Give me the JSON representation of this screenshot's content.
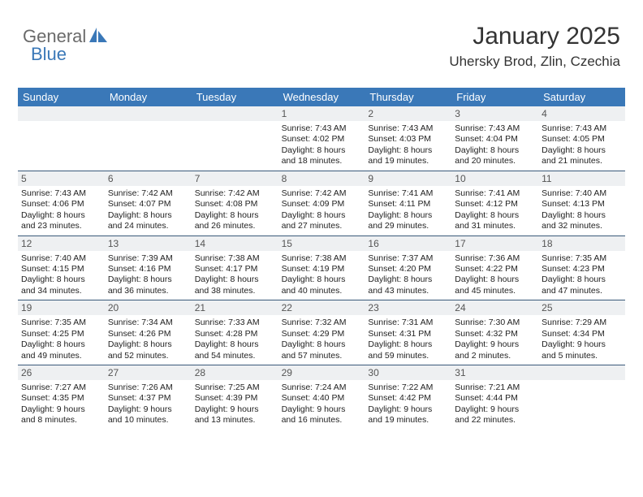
{
  "brand": {
    "name_left": "General",
    "name_right": "Blue"
  },
  "colors": {
    "header_bg": "#3a78b8",
    "header_text": "#ffffff",
    "daynum_bg": "#eef0f2",
    "week_border": "#3a5a7a",
    "text": "#222222",
    "title": "#333333"
  },
  "title": "January 2025",
  "location": "Uhersky Brod, Zlin, Czechia",
  "day_names": [
    "Sunday",
    "Monday",
    "Tuesday",
    "Wednesday",
    "Thursday",
    "Friday",
    "Saturday"
  ],
  "weeks": [
    [
      null,
      null,
      null,
      {
        "n": "1",
        "sr": "7:43 AM",
        "ss": "4:02 PM",
        "dlh": "8",
        "dlm": "18"
      },
      {
        "n": "2",
        "sr": "7:43 AM",
        "ss": "4:03 PM",
        "dlh": "8",
        "dlm": "19"
      },
      {
        "n": "3",
        "sr": "7:43 AM",
        "ss": "4:04 PM",
        "dlh": "8",
        "dlm": "20"
      },
      {
        "n": "4",
        "sr": "7:43 AM",
        "ss": "4:05 PM",
        "dlh": "8",
        "dlm": "21"
      }
    ],
    [
      {
        "n": "5",
        "sr": "7:43 AM",
        "ss": "4:06 PM",
        "dlh": "8",
        "dlm": "23"
      },
      {
        "n": "6",
        "sr": "7:42 AM",
        "ss": "4:07 PM",
        "dlh": "8",
        "dlm": "24"
      },
      {
        "n": "7",
        "sr": "7:42 AM",
        "ss": "4:08 PM",
        "dlh": "8",
        "dlm": "26"
      },
      {
        "n": "8",
        "sr": "7:42 AM",
        "ss": "4:09 PM",
        "dlh": "8",
        "dlm": "27"
      },
      {
        "n": "9",
        "sr": "7:41 AM",
        "ss": "4:11 PM",
        "dlh": "8",
        "dlm": "29"
      },
      {
        "n": "10",
        "sr": "7:41 AM",
        "ss": "4:12 PM",
        "dlh": "8",
        "dlm": "31"
      },
      {
        "n": "11",
        "sr": "7:40 AM",
        "ss": "4:13 PM",
        "dlh": "8",
        "dlm": "32"
      }
    ],
    [
      {
        "n": "12",
        "sr": "7:40 AM",
        "ss": "4:15 PM",
        "dlh": "8",
        "dlm": "34"
      },
      {
        "n": "13",
        "sr": "7:39 AM",
        "ss": "4:16 PM",
        "dlh": "8",
        "dlm": "36"
      },
      {
        "n": "14",
        "sr": "7:38 AM",
        "ss": "4:17 PM",
        "dlh": "8",
        "dlm": "38"
      },
      {
        "n": "15",
        "sr": "7:38 AM",
        "ss": "4:19 PM",
        "dlh": "8",
        "dlm": "40"
      },
      {
        "n": "16",
        "sr": "7:37 AM",
        "ss": "4:20 PM",
        "dlh": "8",
        "dlm": "43"
      },
      {
        "n": "17",
        "sr": "7:36 AM",
        "ss": "4:22 PM",
        "dlh": "8",
        "dlm": "45"
      },
      {
        "n": "18",
        "sr": "7:35 AM",
        "ss": "4:23 PM",
        "dlh": "8",
        "dlm": "47"
      }
    ],
    [
      {
        "n": "19",
        "sr": "7:35 AM",
        "ss": "4:25 PM",
        "dlh": "8",
        "dlm": "49"
      },
      {
        "n": "20",
        "sr": "7:34 AM",
        "ss": "4:26 PM",
        "dlh": "8",
        "dlm": "52"
      },
      {
        "n": "21",
        "sr": "7:33 AM",
        "ss": "4:28 PM",
        "dlh": "8",
        "dlm": "54"
      },
      {
        "n": "22",
        "sr": "7:32 AM",
        "ss": "4:29 PM",
        "dlh": "8",
        "dlm": "57"
      },
      {
        "n": "23",
        "sr": "7:31 AM",
        "ss": "4:31 PM",
        "dlh": "8",
        "dlm": "59"
      },
      {
        "n": "24",
        "sr": "7:30 AM",
        "ss": "4:32 PM",
        "dlh": "9",
        "dlm": "2"
      },
      {
        "n": "25",
        "sr": "7:29 AM",
        "ss": "4:34 PM",
        "dlh": "9",
        "dlm": "5"
      }
    ],
    [
      {
        "n": "26",
        "sr": "7:27 AM",
        "ss": "4:35 PM",
        "dlh": "9",
        "dlm": "8"
      },
      {
        "n": "27",
        "sr": "7:26 AM",
        "ss": "4:37 PM",
        "dlh": "9",
        "dlm": "10"
      },
      {
        "n": "28",
        "sr": "7:25 AM",
        "ss": "4:39 PM",
        "dlh": "9",
        "dlm": "13"
      },
      {
        "n": "29",
        "sr": "7:24 AM",
        "ss": "4:40 PM",
        "dlh": "9",
        "dlm": "16"
      },
      {
        "n": "30",
        "sr": "7:22 AM",
        "ss": "4:42 PM",
        "dlh": "9",
        "dlm": "19"
      },
      {
        "n": "31",
        "sr": "7:21 AM",
        "ss": "4:44 PM",
        "dlh": "9",
        "dlm": "22"
      },
      null
    ]
  ],
  "labels": {
    "sunrise": "Sunrise:",
    "sunset": "Sunset:",
    "daylight": "Daylight:",
    "hours": "hours",
    "and": "and",
    "minutes": "minutes."
  }
}
